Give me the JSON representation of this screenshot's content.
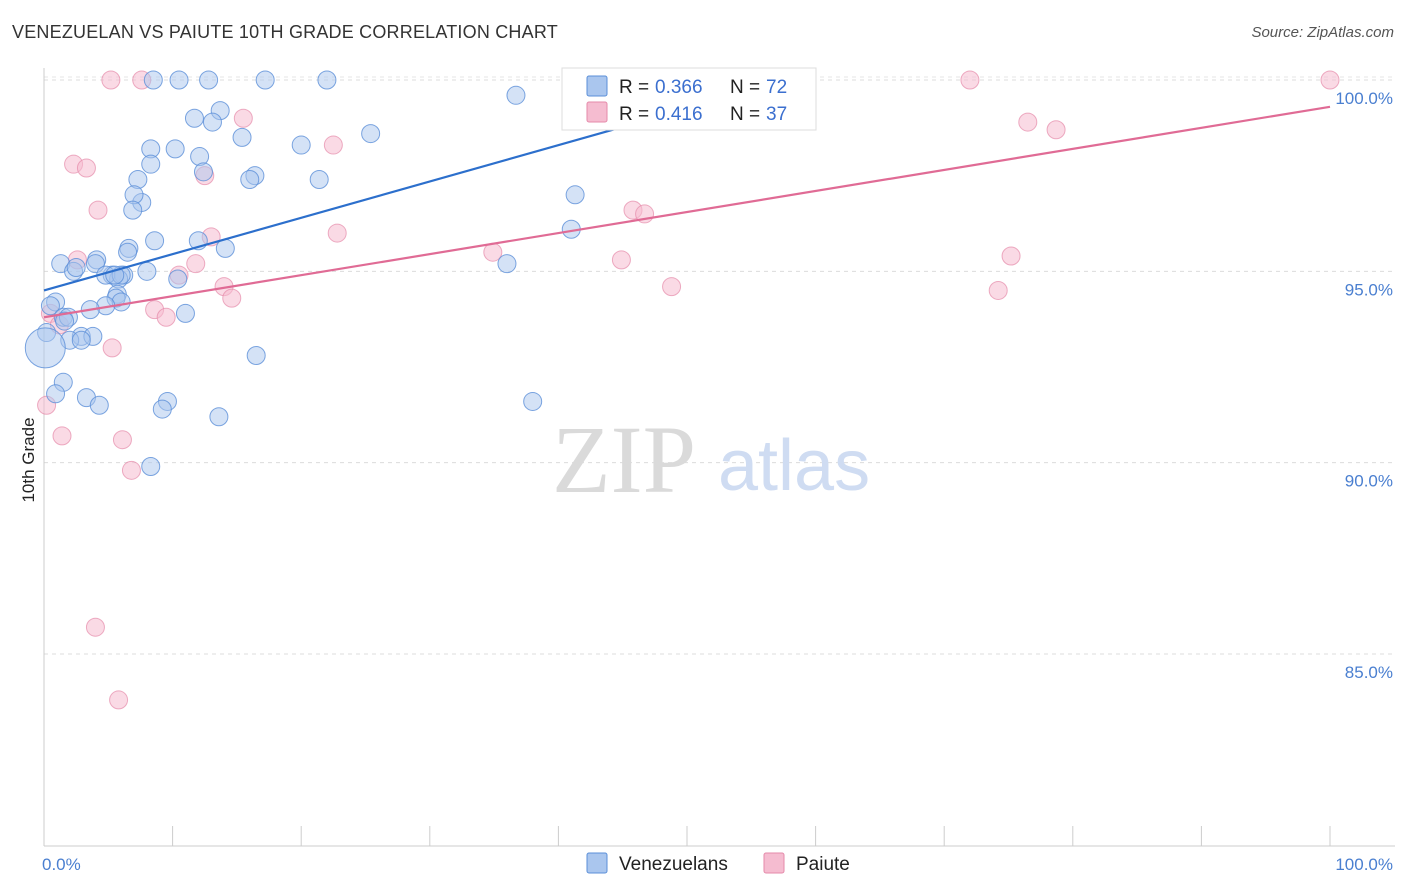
{
  "title": "VENEZUELAN VS PAIUTE 10TH GRADE CORRELATION CHART",
  "source": "Source: ZipAtlas.com",
  "colors": {
    "venezuelans_fill": "#aac6ee",
    "venezuelans_stroke": "#5b8fd8",
    "venezuelans_line": "#2c6fcc",
    "paiute_fill": "#f5bcd0",
    "paiute_stroke": "#e58aaa",
    "paiute_line": "#e06b95",
    "tick_label": "#4a7fd0"
  },
  "watermark": {
    "zip": "ZIP",
    "atlas": "atlas"
  },
  "legend_top": [
    {
      "series": "Venezuelans",
      "r_label": "R =",
      "r_value": "0.366",
      "n_label": "N =",
      "n_value": "72"
    },
    {
      "series": "Paiute",
      "r_label": "R =",
      "r_value": "0.416",
      "n_label": "N =",
      "n_value": "37"
    }
  ],
  "legend_bottom": [
    "Venezuelans",
    "Paiute"
  ],
  "chart_data": {
    "type": "scatter",
    "title": "VENEZUELAN VS PAIUTE 10TH GRADE CORRELATION CHART",
    "xlabel": "",
    "ylabel": "10th Grade",
    "xlim": [
      0,
      100
    ],
    "ylim": [
      80.5,
      101
    ],
    "x_tick_labels": [
      {
        "value": 0,
        "label": "0.0%"
      },
      {
        "value": 100,
        "label": "100.0%"
      }
    ],
    "y_tick_labels": [
      {
        "value": 85,
        "label": "85.0%"
      },
      {
        "value": 90,
        "label": "90.0%"
      },
      {
        "value": 95,
        "label": "95.0%"
      },
      {
        "value": 100,
        "label": "100.0%"
      }
    ],
    "x_minor_ticks": [
      0,
      10,
      20,
      30,
      40,
      50,
      60,
      70,
      80,
      90,
      100
    ],
    "grid": true,
    "legend_position": "top-center",
    "series": [
      {
        "name": "Venezuelans",
        "r": 0.366,
        "n": 72,
        "trend": [
          [
            0,
            94.5
          ],
          [
            49.5,
            99.2
          ]
        ],
        "points": [
          [
            8.5,
            100
          ],
          [
            10.5,
            100
          ],
          [
            12.8,
            100
          ],
          [
            17.2,
            100
          ],
          [
            22,
            100
          ],
          [
            36.7,
            99.6
          ],
          [
            13.7,
            99.2
          ],
          [
            11.7,
            99.0
          ],
          [
            13.1,
            98.9
          ],
          [
            15.4,
            98.5
          ],
          [
            25.4,
            98.6
          ],
          [
            20,
            98.3
          ],
          [
            10.2,
            98.2
          ],
          [
            8.3,
            98.2
          ],
          [
            12.1,
            98.0
          ],
          [
            8.3,
            97.8
          ],
          [
            12.4,
            97.6
          ],
          [
            16.4,
            97.5
          ],
          [
            16,
            97.4
          ],
          [
            21.4,
            97.4
          ],
          [
            7.3,
            97.4
          ],
          [
            41.3,
            97.0
          ],
          [
            7.6,
            96.8
          ],
          [
            7,
            97.0
          ],
          [
            6.9,
            96.6
          ],
          [
            41,
            96.1
          ],
          [
            8.6,
            95.8
          ],
          [
            12,
            95.8
          ],
          [
            14.1,
            95.6
          ],
          [
            6.6,
            95.6
          ],
          [
            4.1,
            95.3
          ],
          [
            6.5,
            95.5
          ],
          [
            1.3,
            95.2
          ],
          [
            4,
            95.2
          ],
          [
            2.3,
            95.0
          ],
          [
            2.5,
            95.1
          ],
          [
            5.3,
            94.9
          ],
          [
            6.2,
            94.9
          ],
          [
            5.8,
            94.8
          ],
          [
            4.8,
            94.9
          ],
          [
            8,
            95.0
          ],
          [
            6,
            94.9
          ],
          [
            5.5,
            94.9
          ],
          [
            10.4,
            94.8
          ],
          [
            36,
            95.2
          ],
          [
            5.7,
            94.4
          ],
          [
            5.6,
            94.3
          ],
          [
            6,
            94.2
          ],
          [
            4.8,
            94.1
          ],
          [
            0.9,
            94.2
          ],
          [
            0.5,
            94.1
          ],
          [
            3.6,
            94.0
          ],
          [
            11,
            93.9
          ],
          [
            1.5,
            93.8
          ],
          [
            1.9,
            93.8
          ],
          [
            1.6,
            93.7
          ],
          [
            0.2,
            93.4
          ],
          [
            2.9,
            93.3
          ],
          [
            3.8,
            93.3
          ],
          [
            2,
            93.2
          ],
          [
            2.9,
            93.2
          ],
          [
            16.5,
            92.8
          ],
          [
            0.1,
            93.0
          ],
          [
            1.5,
            92.1
          ],
          [
            0.9,
            91.8
          ],
          [
            3.3,
            91.7
          ],
          [
            9.6,
            91.6
          ],
          [
            4.3,
            91.5
          ],
          [
            38,
            91.6
          ],
          [
            9.2,
            91.4
          ],
          [
            13.6,
            91.2
          ],
          [
            8.3,
            89.9
          ]
        ]
      },
      {
        "name": "Paiute",
        "r": 0.416,
        "n": 37,
        "trend": [
          [
            0,
            93.8
          ],
          [
            100,
            99.3
          ]
        ],
        "points": [
          [
            5.2,
            100
          ],
          [
            7.6,
            100
          ],
          [
            72,
            100
          ],
          [
            100,
            100
          ],
          [
            15.5,
            99.0
          ],
          [
            76.5,
            98.9
          ],
          [
            78.7,
            98.7
          ],
          [
            22.5,
            98.3
          ],
          [
            2.3,
            97.8
          ],
          [
            3.3,
            97.7
          ],
          [
            12.5,
            97.5
          ],
          [
            4.2,
            96.6
          ],
          [
            45.8,
            96.6
          ],
          [
            46.7,
            96.5
          ],
          [
            22.8,
            96.0
          ],
          [
            13,
            95.9
          ],
          [
            34.9,
            95.5
          ],
          [
            75.2,
            95.4
          ],
          [
            2.6,
            95.3
          ],
          [
            44.9,
            95.3
          ],
          [
            11.8,
            95.2
          ],
          [
            10.5,
            94.9
          ],
          [
            48.8,
            94.6
          ],
          [
            74.2,
            94.5
          ],
          [
            14,
            94.6
          ],
          [
            14.6,
            94.3
          ],
          [
            8.6,
            94.0
          ],
          [
            9.5,
            93.8
          ],
          [
            0.5,
            93.9
          ],
          [
            5.3,
            93.0
          ],
          [
            0.2,
            91.5
          ],
          [
            1.4,
            90.7
          ],
          [
            6.1,
            90.6
          ],
          [
            6.8,
            89.8
          ],
          [
            4,
            85.7
          ],
          [
            5.8,
            83.8
          ],
          [
            1.2,
            93.6
          ]
        ]
      }
    ]
  }
}
